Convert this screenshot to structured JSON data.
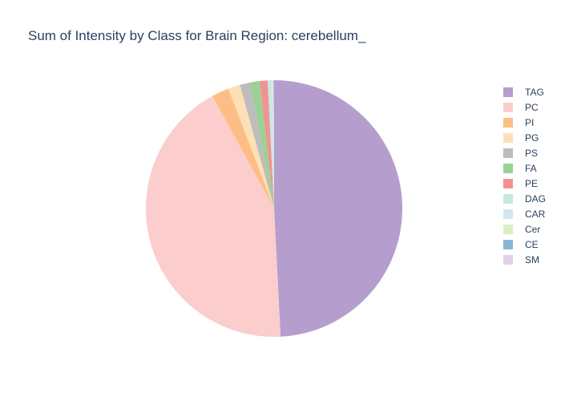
{
  "chart_data": {
    "type": "pie",
    "title": "Sum of Intensity by Class for Brain Region: cerebellum_",
    "direction": "clockwise",
    "sort": false,
    "legend_position": "right",
    "slices": [
      {
        "label": "TAG",
        "value": 49.2,
        "color": "#b59dce"
      },
      {
        "label": "PC",
        "value": 42.8,
        "color": "#fccdcd"
      },
      {
        "label": "PI",
        "value": 2.2,
        "color": "#fdbe85"
      },
      {
        "label": "PG",
        "value": 1.5,
        "color": "#fee0b6"
      },
      {
        "label": "PS",
        "value": 1.3,
        "color": "#bdbdbd"
      },
      {
        "label": "FA",
        "value": 1.2,
        "color": "#9bd194"
      },
      {
        "label": "PE",
        "value": 1.0,
        "color": "#f19391"
      },
      {
        "label": "DAG",
        "value": 0.4,
        "color": "#c6e8df"
      },
      {
        "label": "CAR",
        "value": 0.2,
        "color": "#d2e5f0"
      },
      {
        "label": "Cer",
        "value": 0.1,
        "color": "#d9efc4"
      },
      {
        "label": "CE",
        "value": 0.05,
        "color": "#8ab6d6"
      },
      {
        "label": "SM",
        "value": 0.05,
        "color": "#e2d2e8"
      }
    ]
  }
}
